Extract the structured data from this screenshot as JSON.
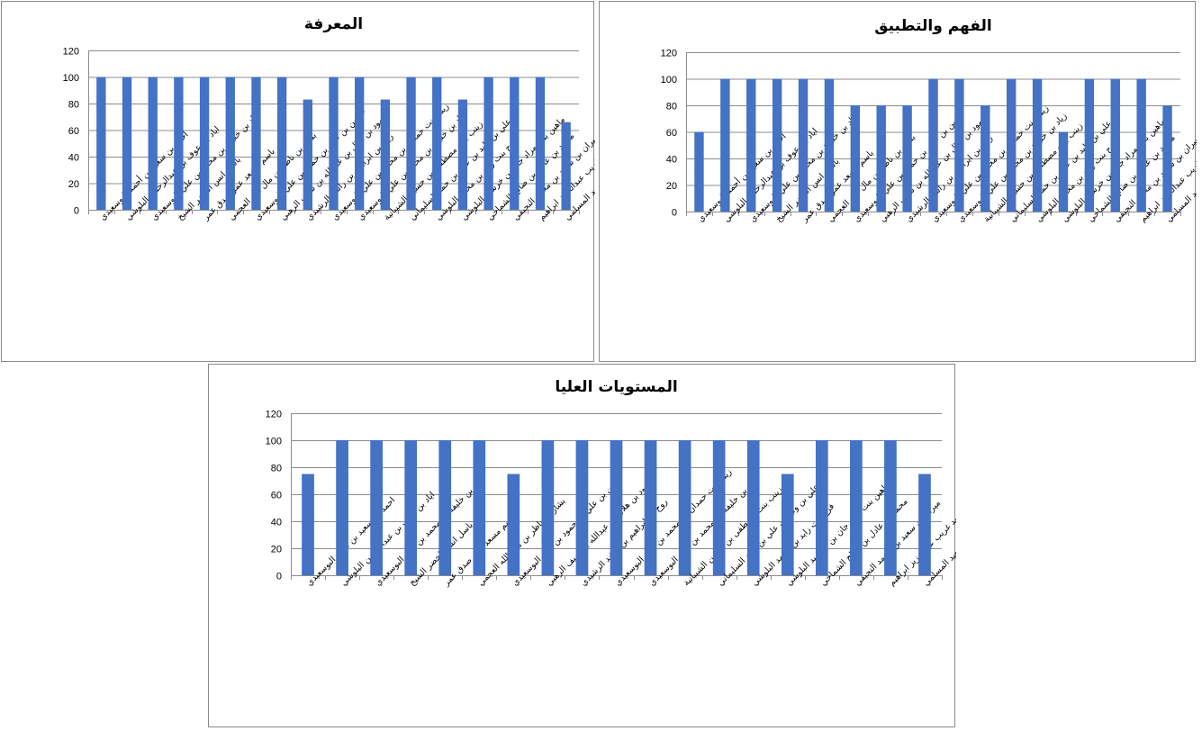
{
  "chart_data": [
    {
      "id": "knowledge",
      "type": "bar",
      "title": "المعرفة",
      "ylim": [
        0,
        120
      ],
      "yticks": [
        0,
        20,
        40,
        60,
        80,
        100,
        120
      ],
      "grid": true,
      "categories": [
        "احمد بن سعيد بن أحمد البوسعيدي",
        "اياد بن عوف بن عبدالرحمن البلوشي",
        "اياد بن خليفة بن محمد بن علي البوسعيدي",
        "باسل انس الخضر الشيخ",
        "باسم مسعد عمر صدق عمر",
        "بشار بن ناظر بن مال الله العجمي",
        "حسين بن علي بن حمود بن علي البوسعيدي",
        "حمود بن هلال بن عبدالله بن سيف الرهبي",
        "روح بن ابراهيم بن راشد الرشيدي",
        "زيناء بنت حمدان بن محمد بن علي البوسعيدي",
        "زياد بن خليفة بن محمد بن علي البوسعيدي",
        "زينب بنت مصطفى بن حسين الشيبانية",
        "علي بن وليد بن علي بن حمد السليماني",
        "فرح بنت زايد بن محمد البلوشي",
        "ماهين بنت مراد جان بن خرشيد البلوشي",
        "محمد بن عادل بن صالح الشماخي",
        "ميران بن سعيد بن محمد النجيفي",
        "هنا أحمد غريب عبدالعزيز ابراهيم",
        "عمار بن حميد بن سعيد المسلمي"
      ],
      "values": [
        100,
        100,
        100,
        100,
        100,
        100,
        100,
        100,
        83,
        100,
        100,
        83,
        100,
        100,
        83,
        100,
        100,
        100,
        66
      ],
      "color": "#4472C4"
    },
    {
      "id": "comprehension",
      "type": "bar",
      "title": "الفهم والتطبيق",
      "ylim": [
        0,
        120
      ],
      "yticks": [
        0,
        20,
        40,
        60,
        80,
        100,
        120
      ],
      "grid": true,
      "categories": [
        "احمد بن سعيد بن أحمد البوسعيدي",
        "اياد بن عوف بن عبدالرحمن البلوشي",
        "اياد بن خليفة بن محمد بن علي البوسعيدي",
        "باسل انس الخضر الشيخ",
        "باسم مسعد عمر صدق عمر",
        "بشار بن ناظر بن مال الله العجمي",
        "حسين بن علي بن حمود بن علي البوسعيدي",
        "حمود بن هلال بن عبدالله بن سيف الرهبي",
        "روح بن ابراهيم بن راشد الرشيدي",
        "زيناء بنت حمدان بن محمد بن علي البوسعيدي",
        "زياد بن خليفة بن محمد بن علي البوسعيدي",
        "زينب بنت مصطفى بن حسين الشيبانية",
        "علي بن وليد بن علي بن حمد السليماني",
        "فرح بنت زايد بن محمد البلوشي",
        "ماهين بنت مراد جان بن خرشيد البلوشي",
        "محمد بن عادل بن صالح الشماخي",
        "ميران بن سعيد بن محمد النجيفي",
        "هنا أحمد غريب عبدالعزيز ابراهيم",
        "عمار بن حميد بن سعيد المسلمي"
      ],
      "values": [
        60,
        100,
        100,
        100,
        100,
        100,
        80,
        80,
        80,
        100,
        100,
        80,
        100,
        100,
        60,
        100,
        100,
        100,
        80
      ],
      "color": "#4472C4"
    },
    {
      "id": "higher",
      "type": "bar",
      "title": "المستويات العليا",
      "ylim": [
        0,
        120
      ],
      "yticks": [
        0,
        20,
        40,
        60,
        80,
        100,
        120
      ],
      "grid": true,
      "categories": [
        "احمد بن سعيد بن أحمد البوسعيدي",
        "اياد بن عوف بن عبدالرحمن البلوشي",
        "اياد بن خليفة بن محمد بن علي البوسعيدي",
        "باسل انس الخضر الشيخ",
        "باسم مسعد عمر صدق عمر",
        "بشار بن ناظر بن مال الله العجمي",
        "حسين بن علي بن حمود بن علي البوسعيدي",
        "حمود بن هلال بن عبدالله بن سيف الرهبي",
        "روح بن ابراهيم بن راشد الرشيدي",
        "زيناء بنت حمدان بن محمد بن علي البوسعيدي",
        "زياد بن خليفة بن محمد بن علي البوسعيدي",
        "زينب بنت مصطفى بن حسين الشيبانية",
        "علي بن وليد بن علي بن حمد السليماني",
        "فرح بنت زايد بن محمد البلوشي",
        "ماهين بنت مراد جان بن خرشيد البلوشي",
        "محمد بن عادل بن صالح الشماخي",
        "ميران بن سعيد بن محمد النجيفي",
        "هنا أحمد غريب عبدالعزيز ابراهيم",
        "عمار بن حميد بن سعيد المسلمي"
      ],
      "values": [
        75,
        100,
        100,
        100,
        100,
        100,
        75,
        100,
        100,
        100,
        100,
        100,
        100,
        100,
        75,
        100,
        100,
        100,
        75
      ],
      "color": "#4472C4"
    }
  ]
}
